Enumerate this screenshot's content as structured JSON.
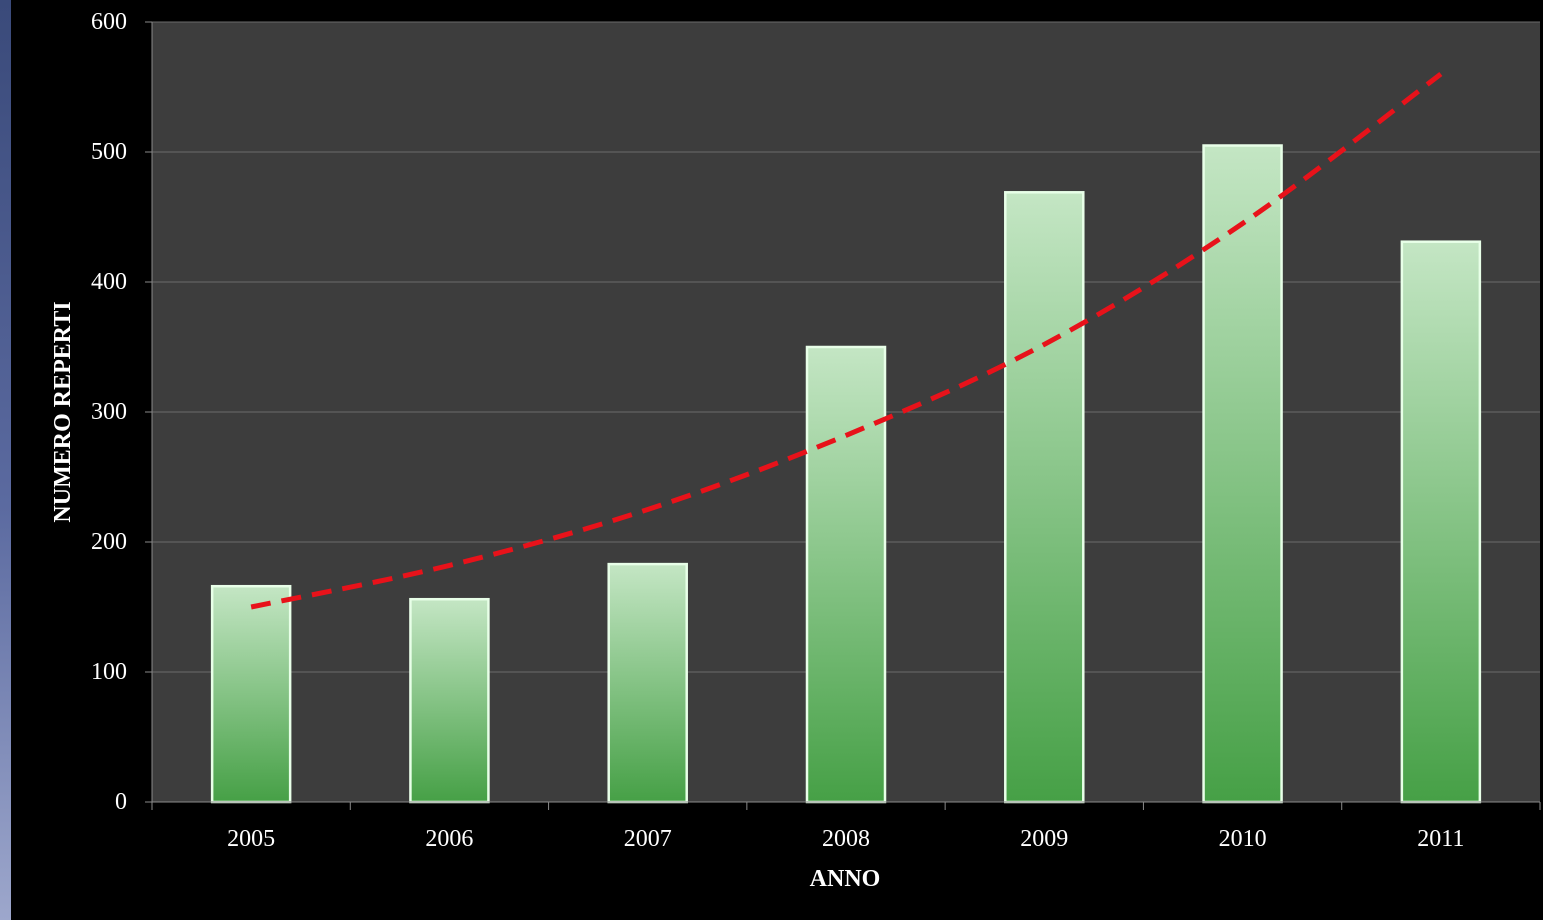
{
  "chart_data": {
    "type": "bar",
    "title": "",
    "xlabel": "ANNO",
    "ylabel": "NUMERO REPERTI",
    "categories": [
      "2005",
      "2006",
      "2007",
      "2008",
      "2009",
      "2010",
      "2011"
    ],
    "series": [
      {
        "values": [
          166,
          156,
          183,
          350,
          469,
          505,
          431
        ]
      }
    ],
    "trendline": {
      "type": "exponential",
      "style": "dashed",
      "values": [
        150,
        182,
        225,
        282,
        352,
        445,
        560
      ]
    },
    "ylim": [
      0,
      600
    ],
    "yticks": [
      "0",
      "100",
      "200",
      "300",
      "400",
      "500",
      "600"
    ],
    "grid": true,
    "legend": "none",
    "colors": {
      "background": "#000000",
      "plot_area": "#3d3d3d",
      "gridline": "#6a6a6a",
      "bar_top": "#c4e6c4",
      "bar_bottom": "#46a046",
      "bar_border": "#e8ffe8",
      "trendline": "#e8121a",
      "text": "#ffffff"
    }
  }
}
